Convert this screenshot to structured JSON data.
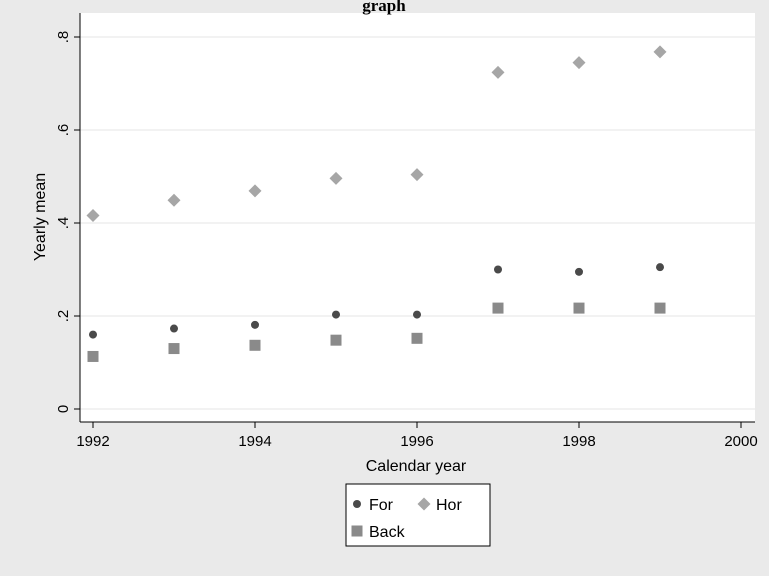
{
  "chart_data": {
    "type": "scatter",
    "title": "graph",
    "xlabel": "Calendar year",
    "ylabel": "Yearly mean",
    "xlim": [
      1992,
      2000
    ],
    "ylim": [
      0,
      0.8
    ],
    "x_ticks": [
      1992,
      1994,
      1996,
      1998,
      2000
    ],
    "x_tick_labels": [
      "1992",
      "1994",
      "1996",
      "1998",
      "2000"
    ],
    "y_ticks": [
      0,
      0.2,
      0.4,
      0.6,
      0.8
    ],
    "y_tick_labels": [
      "0",
      ".2",
      ".4",
      ".6",
      ".8"
    ],
    "grid": true,
    "legend_position": "bottom",
    "x": [
      1992,
      1993,
      1994,
      1995,
      1996,
      1997,
      1998,
      1999
    ],
    "series": [
      {
        "name": "For",
        "marker": "circle",
        "color": "#4a4a4a",
        "values": [
          0.16,
          0.173,
          0.181,
          0.203,
          0.203,
          0.3,
          0.295,
          0.305
        ]
      },
      {
        "name": "Hor",
        "marker": "diamond",
        "color": "#a6a6a6",
        "values": [
          0.416,
          0.449,
          0.469,
          0.496,
          0.504,
          0.724,
          0.745,
          0.768
        ]
      },
      {
        "name": "Back",
        "marker": "square",
        "color": "#8a8a8a",
        "values": [
          0.113,
          0.13,
          0.137,
          0.148,
          0.152,
          0.217,
          0.217,
          0.217
        ]
      }
    ]
  }
}
